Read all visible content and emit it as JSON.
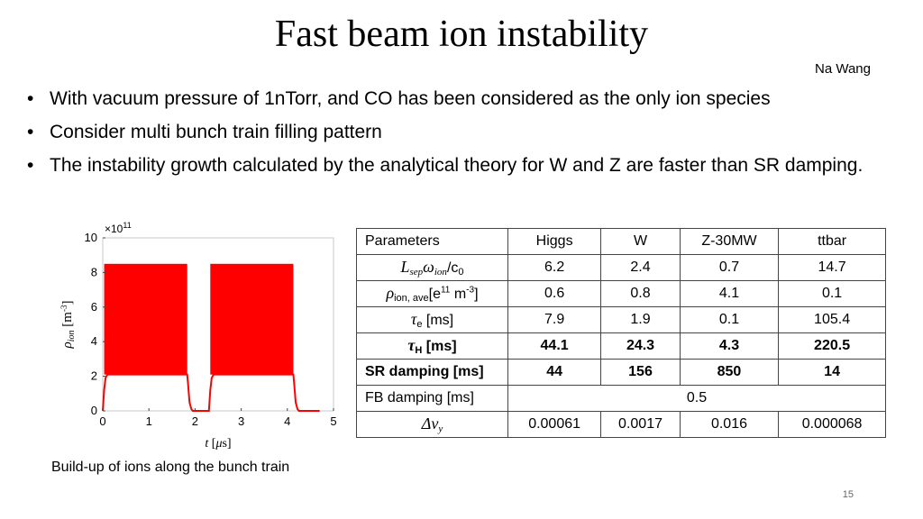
{
  "slide": {
    "title": "Fast beam ion instability",
    "author": "Na Wang",
    "page_number": "15",
    "bullets": [
      "With vacuum pressure of 1nTorr, and CO has been considered as the only ion species",
      "Consider multi bunch train filling pattern",
      "The instability growth calculated by the analytical theory for W and Z are faster than SR damping."
    ],
    "caption": "Build-up of ions along the bunch train"
  },
  "table": {
    "header": [
      "Parameters",
      "Higgs",
      "W",
      "Z-30MW",
      "ttbar"
    ],
    "rows": [
      {
        "label_parts": [
          "L",
          "sep",
          "ω",
          "ion",
          "/c",
          "0"
        ],
        "values": [
          "6.2",
          "2.4",
          "0.7",
          "14.7"
        ]
      },
      {
        "label_parts": [
          "ρ",
          "ion, ave",
          "[e",
          "11",
          " m",
          "-3",
          "]"
        ],
        "values": [
          "0.6",
          "0.8",
          "4.1",
          "0.1"
        ]
      },
      {
        "label_parts": [
          "τ",
          "e",
          " [ms]"
        ],
        "values": [
          "7.9",
          "1.9",
          "0.1",
          "105.4"
        ]
      },
      {
        "label_parts": [
          "τ",
          "H",
          " [ms]"
        ],
        "values": [
          "44.1",
          "24.3",
          "4.3",
          "220.5"
        ]
      },
      {
        "label": "SR damping [ms]",
        "values": [
          "44",
          "156",
          "850",
          "14"
        ]
      },
      {
        "label": "FB damping [ms]",
        "value": "0.5"
      },
      {
        "label_parts": [
          "Δν",
          "y"
        ],
        "values": [
          "0.00061",
          "0.0017",
          "0.016",
          "0.000068"
        ]
      }
    ]
  },
  "chart_data": {
    "type": "area",
    "xlabel": "t [μs]",
    "ylabel": "ρion [m-3]",
    "y_multiplier": "×10^11",
    "xlim": [
      0,
      5
    ],
    "ylim": [
      0,
      10
    ],
    "x_ticks": [
      "0",
      "1",
      "2",
      "3",
      "4",
      "5"
    ],
    "y_ticks": [
      "0",
      "2",
      "4",
      "6",
      "8",
      "10"
    ],
    "series": [
      {
        "color": "#ff0000",
        "oscillation_band": {
          "lower": 2.1,
          "upper": 8.5
        },
        "x": [
          0,
          0.03,
          0.06,
          0.1,
          1.83,
          1.85,
          1.88,
          1.92,
          1.95,
          2.3,
          2.33,
          2.36,
          2.4,
          4.13,
          4.15,
          4.18,
          4.22,
          4.25,
          4.7
        ],
        "y": [
          0,
          1.2,
          1.9,
          2.1,
          2.1,
          1.5,
          0.5,
          0.1,
          0,
          0,
          1.2,
          1.9,
          2.1,
          2.1,
          1.5,
          0.5,
          0.1,
          0,
          0
        ]
      }
    ]
  }
}
